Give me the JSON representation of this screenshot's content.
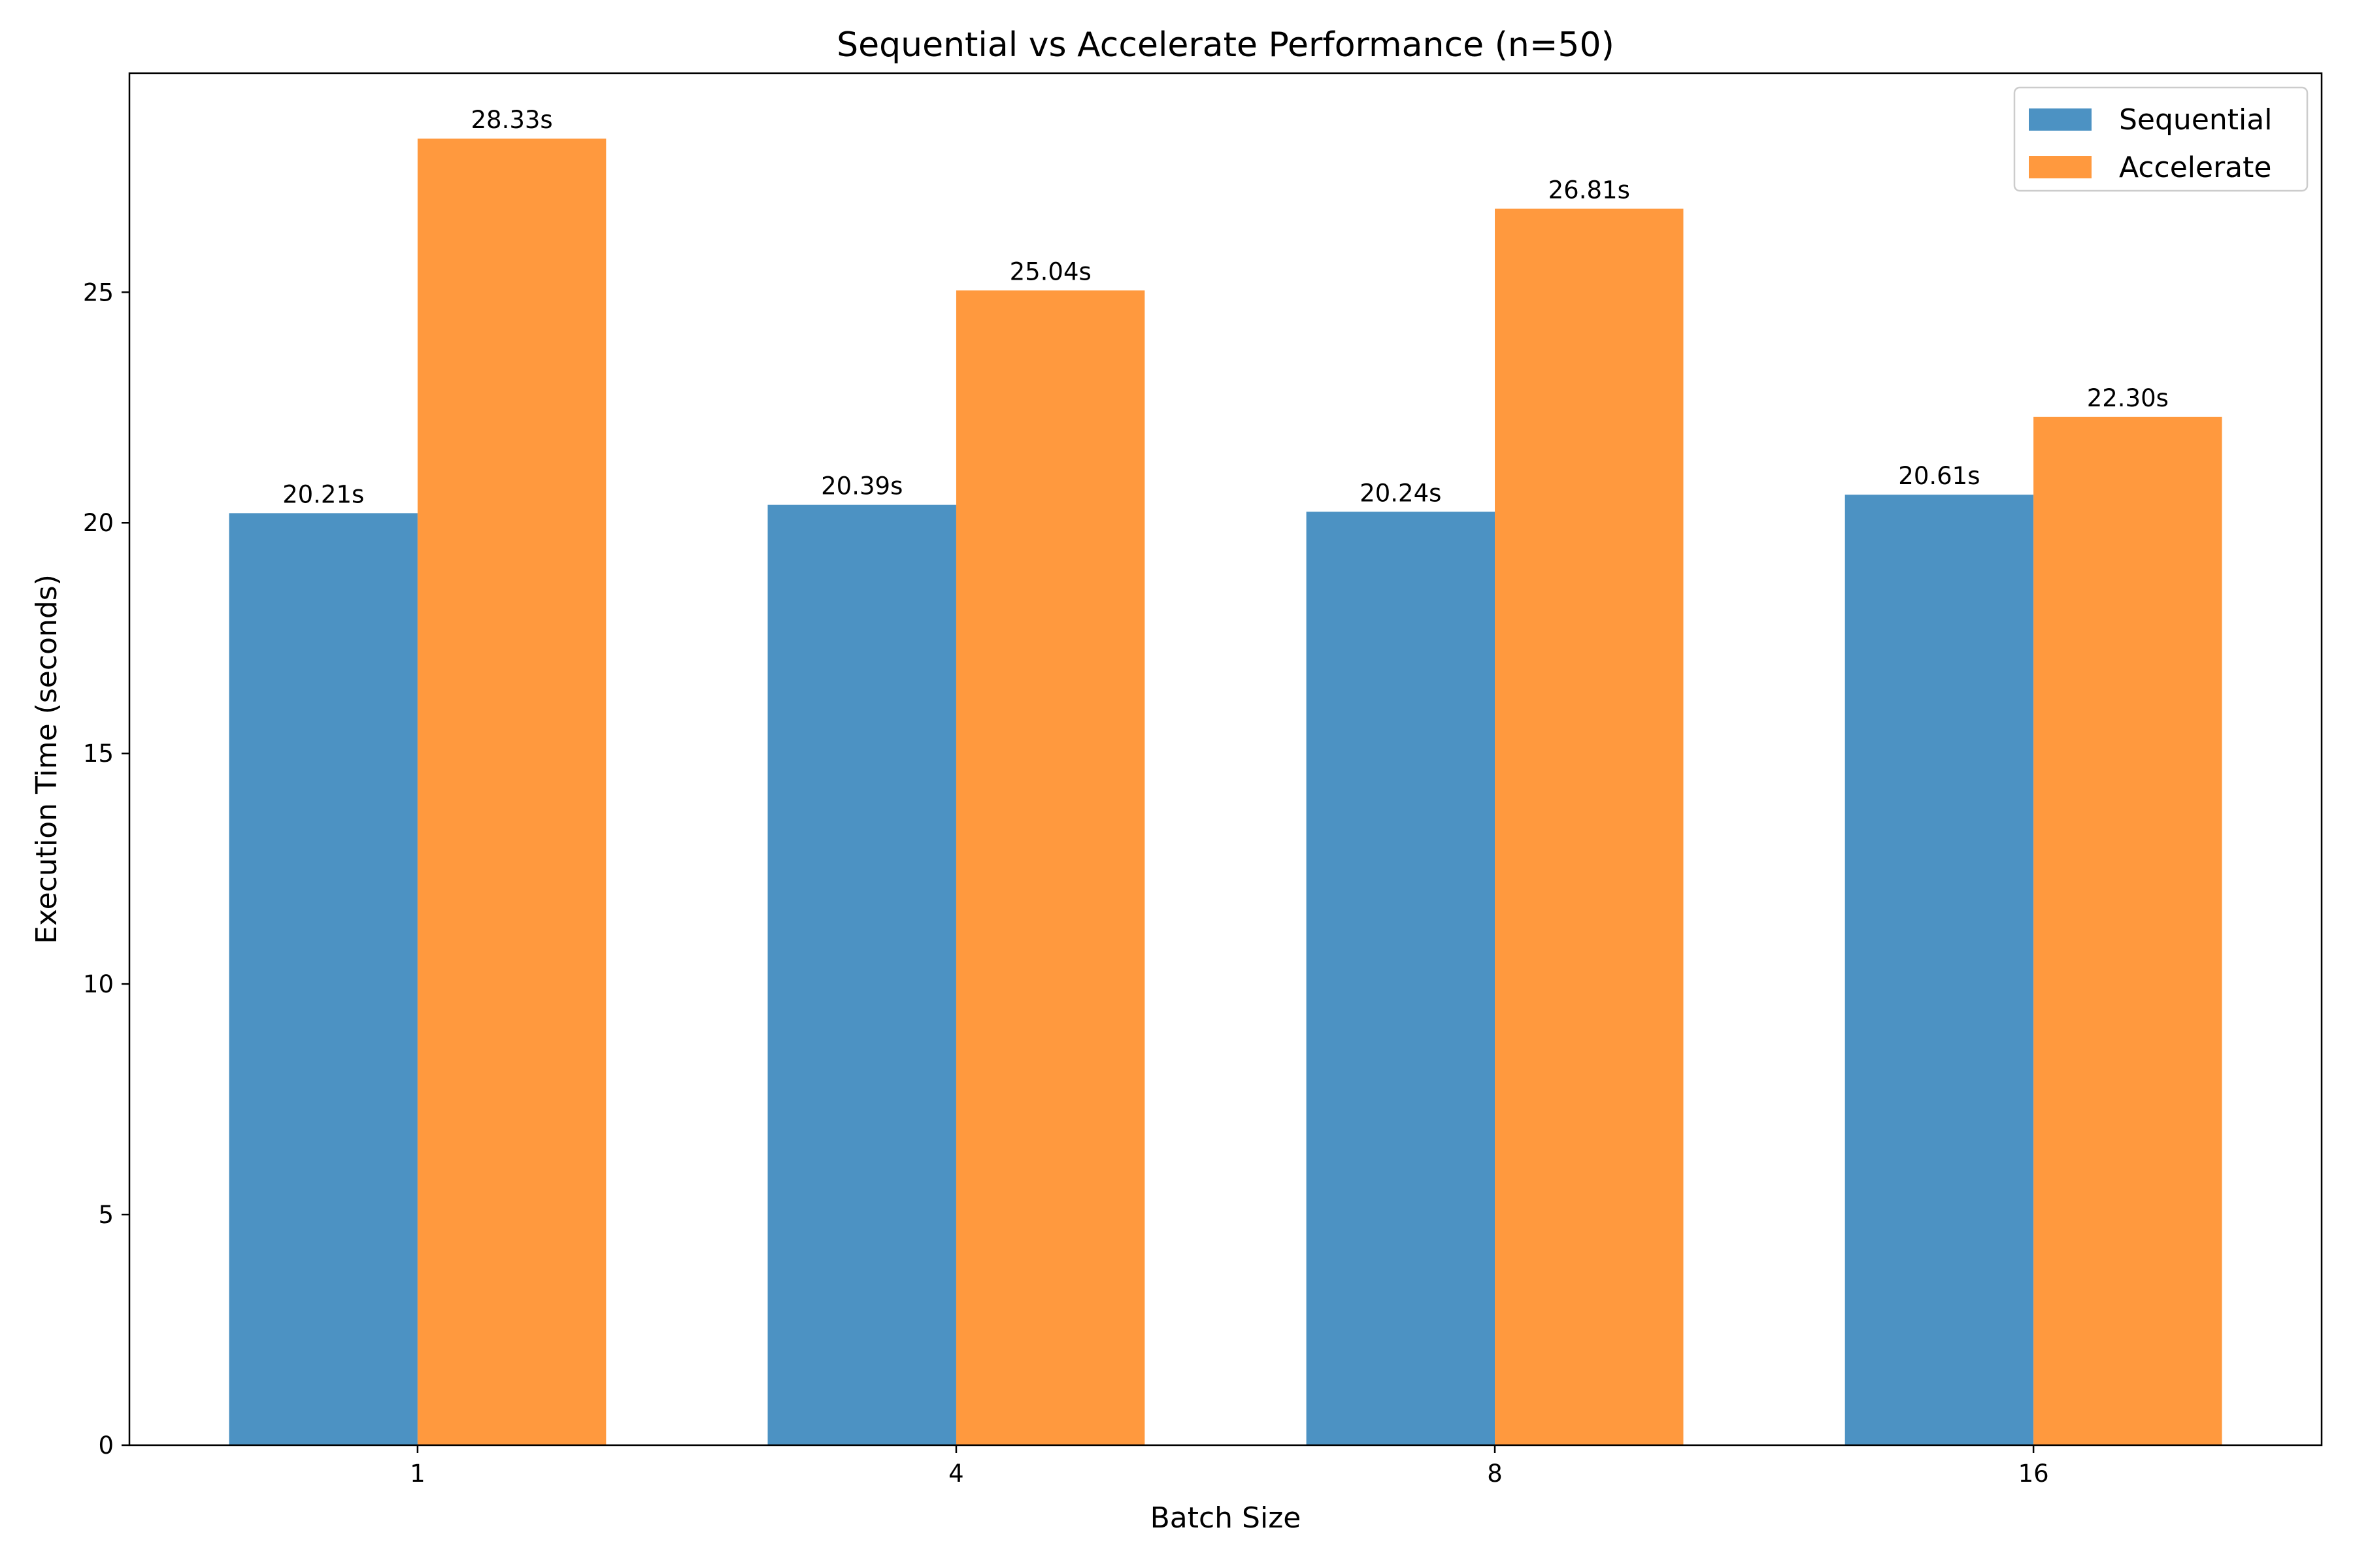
{
  "chart_data": {
    "type": "bar",
    "title": "Sequential vs Accelerate Performance (n=50)",
    "xlabel": "Batch Size",
    "ylabel": "Execution Time (seconds)",
    "categories": [
      "1",
      "4",
      "8",
      "16"
    ],
    "series": [
      {
        "name": "Sequential",
        "color": "#4c92c3",
        "values": [
          20.21,
          20.39,
          20.24,
          20.61
        ],
        "labels": [
          "20.21s",
          "20.39s",
          "20.24s",
          "20.61s"
        ]
      },
      {
        "name": "Accelerate",
        "color": "#ff993e",
        "values": [
          28.33,
          25.04,
          26.81,
          22.3
        ],
        "labels": [
          "28.33s",
          "25.04s",
          "26.81s",
          "22.30s"
        ]
      }
    ],
    "ylim": [
      0,
      29.75
    ],
    "yticks": [
      0,
      5,
      10,
      15,
      20,
      25
    ],
    "ytick_labels": [
      "0",
      "5",
      "10",
      "15",
      "20",
      "25"
    ],
    "grid": false,
    "legend_position": "top-right"
  }
}
